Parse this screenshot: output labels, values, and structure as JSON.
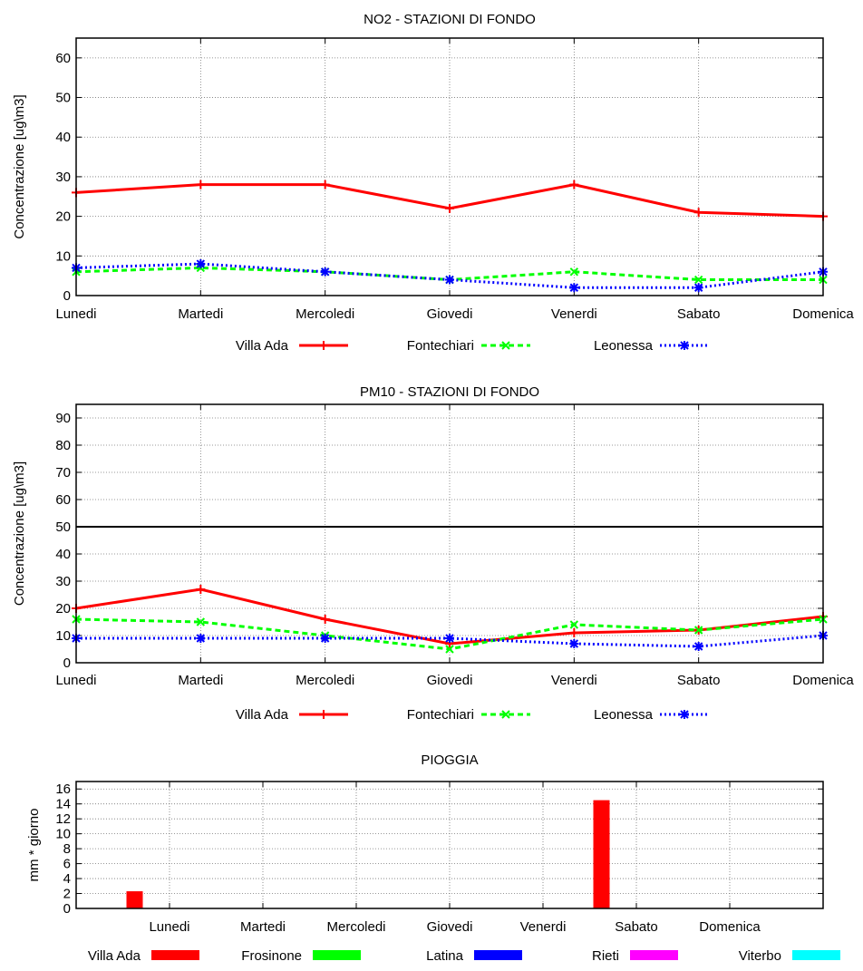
{
  "chart_data": [
    {
      "type": "line",
      "title": "NO2 - STAZIONI DI FONDO",
      "ylabel": "Concentrazione [ug\\m3]",
      "xlabel": "",
      "categories": [
        "Lunedi",
        "Martedi",
        "Mercoledi",
        "Giovedi",
        "Venerdi",
        "Sabato",
        "Domenica"
      ],
      "ylim": [
        0,
        65
      ],
      "yticks": [
        0,
        10,
        20,
        30,
        40,
        50,
        60
      ],
      "grid": true,
      "legend_position": "bottom",
      "reference_line": null,
      "series": [
        {
          "name": "Villa Ada",
          "color": "#ff0000",
          "style": "solid",
          "marker": "plus",
          "values": [
            26,
            28,
            28,
            22,
            28,
            21,
            20
          ]
        },
        {
          "name": "Fontechiari",
          "color": "#00ff00",
          "style": "dashed",
          "marker": "cross",
          "values": [
            6,
            7,
            6,
            4,
            6,
            4,
            4
          ]
        },
        {
          "name": "Leonessa",
          "color": "#0000ff",
          "style": "dotted",
          "marker": "star",
          "values": [
            7,
            8,
            6,
            4,
            2,
            2,
            6
          ]
        }
      ]
    },
    {
      "type": "line",
      "title": "PM10 - STAZIONI DI FONDO",
      "ylabel": "Concentrazione [ug\\m3]",
      "xlabel": "",
      "categories": [
        "Lunedi",
        "Martedi",
        "Mercoledi",
        "Giovedi",
        "Venerdi",
        "Sabato",
        "Domenica"
      ],
      "ylim": [
        0,
        95
      ],
      "yticks": [
        0,
        10,
        20,
        30,
        40,
        50,
        60,
        70,
        80,
        90
      ],
      "grid": true,
      "legend_position": "bottom",
      "reference_line": 50,
      "series": [
        {
          "name": "Villa Ada",
          "color": "#ff0000",
          "style": "solid",
          "marker": "plus",
          "values": [
            20,
            27,
            16,
            7,
            11,
            12,
            17
          ]
        },
        {
          "name": "Fontechiari",
          "color": "#00ff00",
          "style": "dashed",
          "marker": "cross",
          "values": [
            16,
            15,
            10,
            5,
            14,
            12,
            16
          ]
        },
        {
          "name": "Leonessa",
          "color": "#0000ff",
          "style": "dotted",
          "marker": "star",
          "values": [
            9,
            9,
            9,
            9,
            7,
            6,
            10
          ]
        }
      ]
    },
    {
      "type": "bar",
      "title": "PIOGGIA",
      "ylabel": "mm * giorno",
      "xlabel": "",
      "categories": [
        "Lunedi",
        "Martedi",
        "Mercoledi",
        "Giovedi",
        "Venerdi",
        "Sabato",
        "Domenica"
      ],
      "ylim": [
        0,
        17
      ],
      "yticks": [
        0,
        2,
        4,
        6,
        8,
        10,
        12,
        14,
        16
      ],
      "grid": true,
      "legend_position": "bottom",
      "series": [
        {
          "name": "Villa Ada",
          "color": "#ff0000",
          "values": [
            2.3,
            0,
            0,
            0,
            0,
            14.5,
            0
          ]
        },
        {
          "name": "Frosinone",
          "color": "#00ff00",
          "values": [
            0,
            0,
            0,
            0,
            0,
            0,
            0
          ]
        },
        {
          "name": "Latina",
          "color": "#0000ff",
          "values": [
            0,
            0,
            0,
            0,
            0,
            0,
            0
          ]
        },
        {
          "name": "Rieti",
          "color": "#ff00ff",
          "values": [
            0,
            0,
            0,
            0,
            0,
            0,
            0
          ]
        },
        {
          "name": "Viterbo",
          "color": "#00ffff",
          "values": [
            0,
            0,
            0,
            0,
            0,
            0,
            0
          ]
        }
      ]
    }
  ]
}
